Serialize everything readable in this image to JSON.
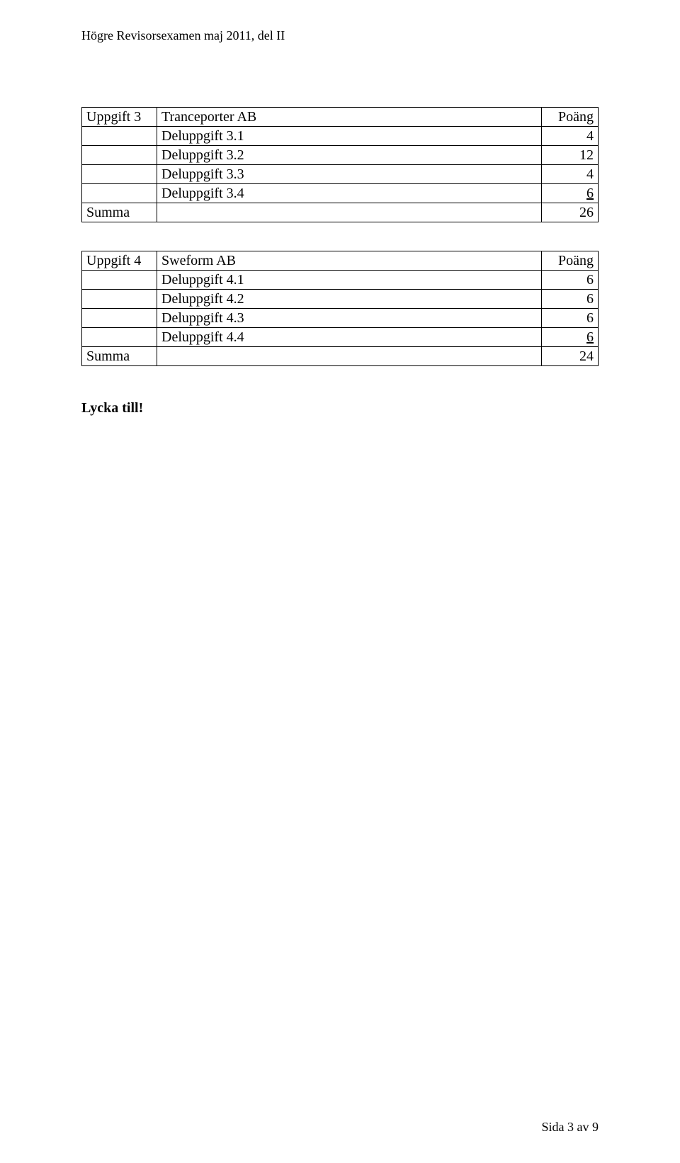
{
  "header": "Högre Revisorsexamen maj 2011, del II",
  "table1": {
    "rows": [
      {
        "a": "Uppgift 3",
        "b": "Tranceporter AB",
        "c": "Poäng",
        "underline": false
      },
      {
        "a": "",
        "b": "Deluppgift 3.1",
        "c": "4",
        "underline": false
      },
      {
        "a": "",
        "b": "Deluppgift 3.2",
        "c": "12",
        "underline": false
      },
      {
        "a": "",
        "b": "Deluppgift 3.3",
        "c": "4",
        "underline": false
      },
      {
        "a": "",
        "b": "Deluppgift 3.4",
        "c": "6",
        "underline": true
      },
      {
        "a": "Summa",
        "b": "",
        "c": "26",
        "underline": false
      }
    ]
  },
  "table2": {
    "rows": [
      {
        "a": "Uppgift 4",
        "b": "Sweform AB",
        "c": "Poäng",
        "underline": false
      },
      {
        "a": "",
        "b": "Deluppgift 4.1",
        "c": "6",
        "underline": false
      },
      {
        "a": "",
        "b": "Deluppgift 4.2",
        "c": "6",
        "underline": false
      },
      {
        "a": "",
        "b": "Deluppgift 4.3",
        "c": "6",
        "underline": false
      },
      {
        "a": "",
        "b": "Deluppgift 4.4",
        "c": "6",
        "underline": true
      },
      {
        "a": "Summa",
        "b": "",
        "c": "24",
        "underline": false
      }
    ]
  },
  "closing": "Lycka till!",
  "footer": "Sida 3 av 9"
}
